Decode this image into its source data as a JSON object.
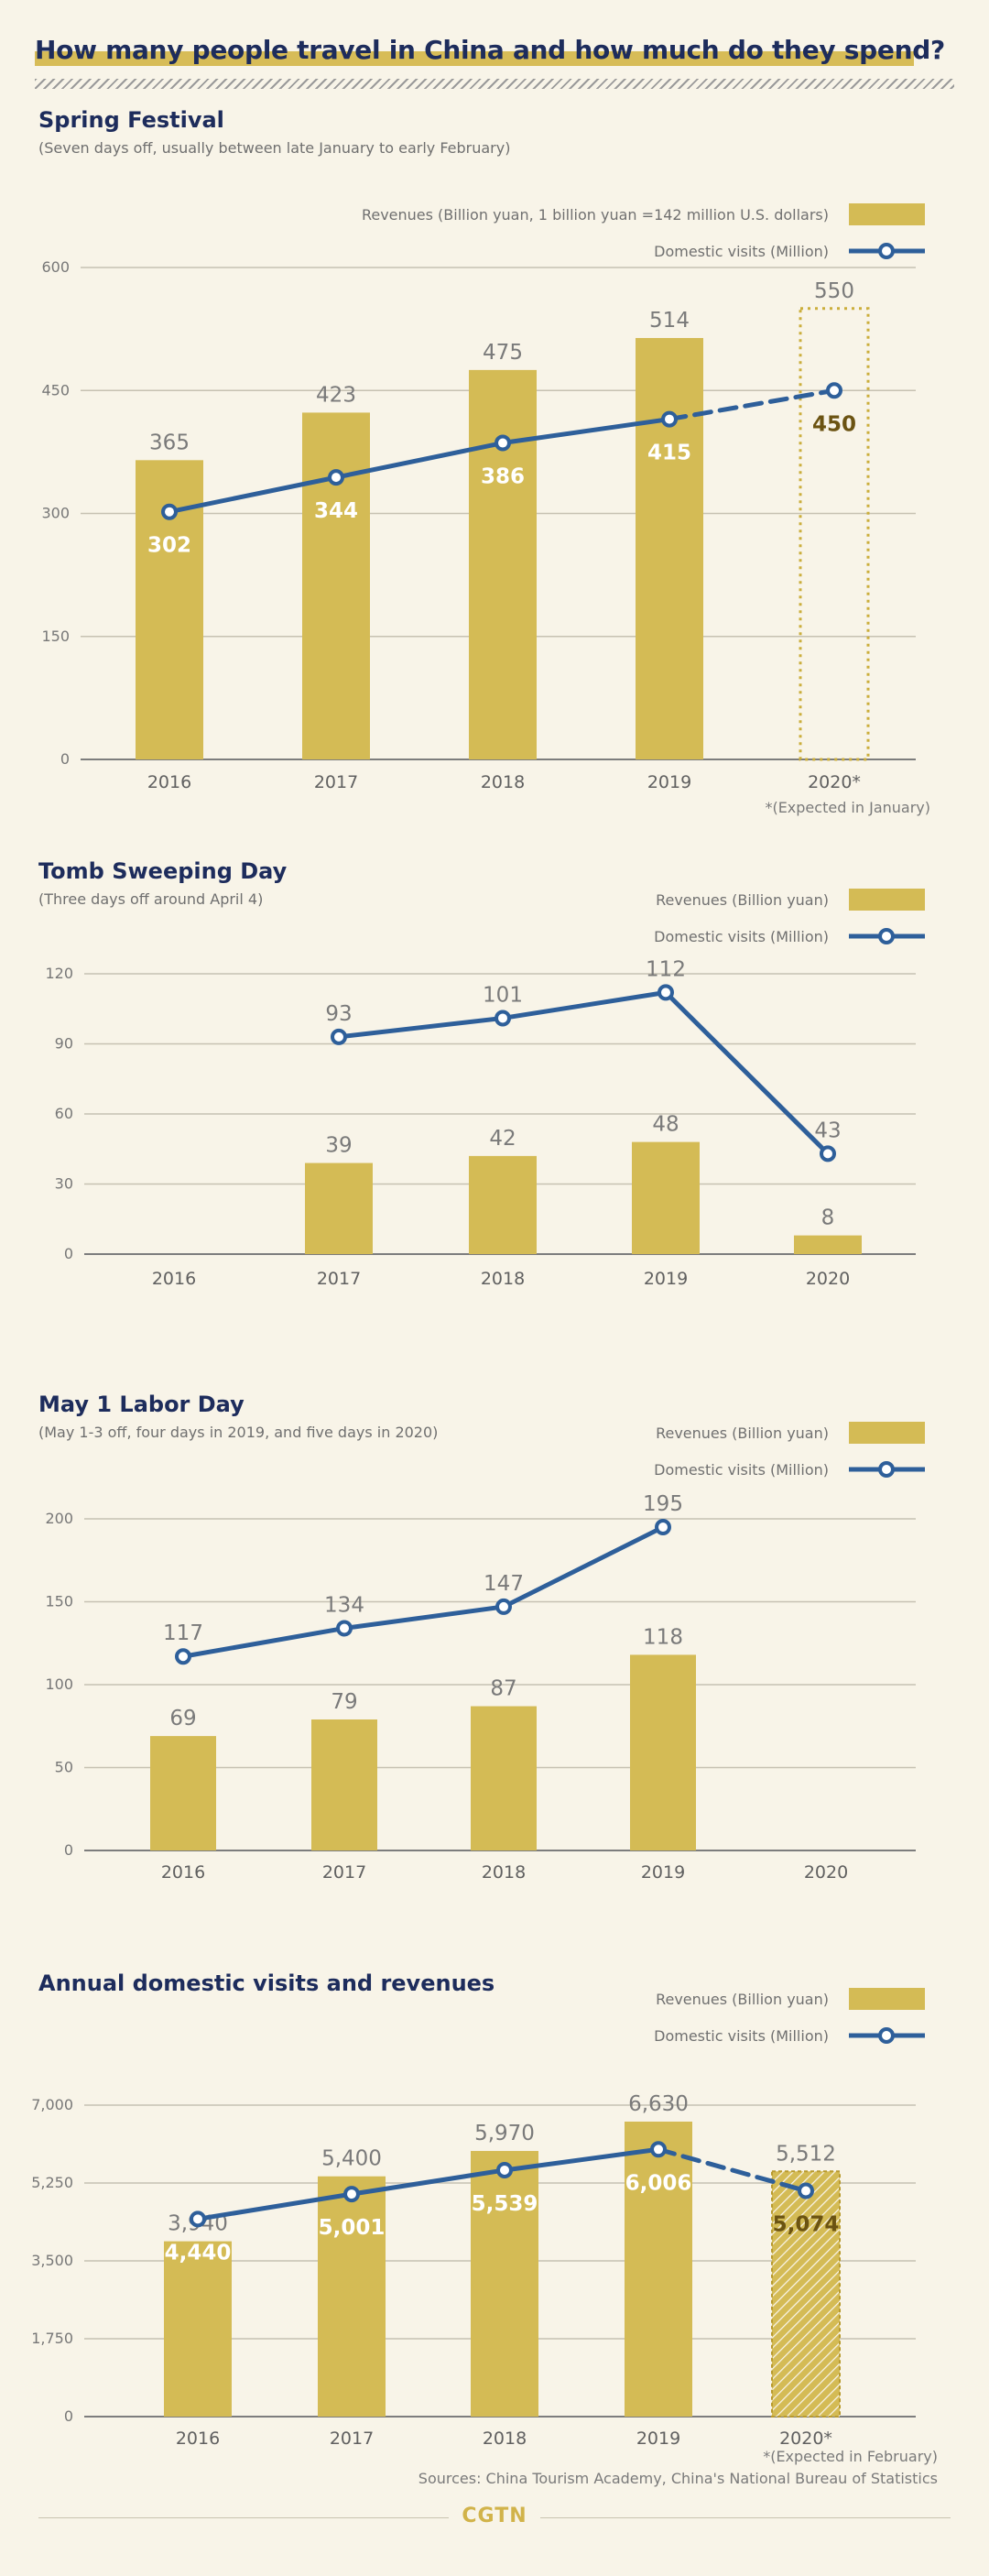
{
  "header": {
    "title": "How many people travel in China and how much do they spend?"
  },
  "colors": {
    "bar": "#d4bb55",
    "line": "#2e5f9a",
    "text": "#1d2c5c",
    "expected_border": "#cbae3c"
  },
  "chart_data": [
    {
      "type": "bar",
      "title": "Spring Festival",
      "subtitle": "(Seven days off, usually between late January to early February)",
      "categories": [
        "2016",
        "2017",
        "2018",
        "2019",
        "2020*"
      ],
      "ylim": [
        0,
        600
      ],
      "yticks": [
        "0",
        "150",
        "300",
        "450",
        "600"
      ],
      "grid": true,
      "legend_position": "top-right",
      "series": [
        {
          "name": "Revenues (Billion yuan, 1 billion yuan =142 million U.S. dollars)",
          "kind": "bar",
          "values": [
            365,
            423,
            475,
            514,
            550
          ],
          "labels": [
            "365",
            "423",
            "475",
            "514",
            "550"
          ]
        },
        {
          "name": "Domestic visits (Million)",
          "kind": "line",
          "values": [
            302,
            344,
            386,
            415,
            450
          ],
          "labels": [
            "302",
            "344",
            "386",
            "415",
            "450"
          ]
        }
      ],
      "expected_index": 4,
      "note": "*(Expected in January)"
    },
    {
      "type": "bar",
      "title": "Tomb Sweeping Day",
      "subtitle": "(Three days off around April 4)",
      "categories": [
        "2016",
        "2017",
        "2018",
        "2019",
        "2020"
      ],
      "ylim": [
        0,
        120
      ],
      "yticks": [
        "0",
        "30",
        "60",
        "90",
        "120"
      ],
      "grid": true,
      "legend_position": "top-right",
      "series": [
        {
          "name": "Revenues (Billion yuan)",
          "kind": "bar",
          "values": [
            null,
            39,
            42,
            48,
            8
          ],
          "labels": [
            "",
            "39",
            "42",
            "48",
            "8"
          ]
        },
        {
          "name": "Domestic visits (Million)",
          "kind": "line",
          "values": [
            null,
            93,
            101,
            112,
            43
          ],
          "labels": [
            "",
            "93",
            "101",
            "112",
            "43"
          ]
        }
      ]
    },
    {
      "type": "bar",
      "title": "May 1 Labor Day",
      "subtitle": "(May 1-3 off, four days in 2019, and five days in 2020)",
      "categories": [
        "2016",
        "2017",
        "2018",
        "2019",
        "2020"
      ],
      "ylim": [
        0,
        200
      ],
      "yticks": [
        "0",
        "50",
        "100",
        "150",
        "200"
      ],
      "grid": true,
      "legend_position": "top-right",
      "series": [
        {
          "name": "Revenues (Billion yuan)",
          "kind": "bar",
          "values": [
            69,
            79,
            87,
            118,
            null
          ],
          "labels": [
            "69",
            "79",
            "87",
            "118",
            ""
          ]
        },
        {
          "name": "Domestic visits (Million)",
          "kind": "line",
          "values": [
            117,
            134,
            147,
            195,
            null
          ],
          "labels": [
            "117",
            "134",
            "147",
            "195",
            ""
          ]
        }
      ]
    },
    {
      "type": "bar",
      "title": "Annual domestic visits and revenues",
      "subtitle": "",
      "categories": [
        "2016",
        "2017",
        "2018",
        "2019",
        "2020*"
      ],
      "ylim": [
        0,
        7000
      ],
      "yticks": [
        "0",
        "1,750",
        "3,500",
        "5,250",
        "7,000"
      ],
      "grid": true,
      "legend_position": "top-right",
      "series": [
        {
          "name": "Revenues (Billion yuan)",
          "kind": "bar",
          "values": [
            3940,
            5400,
            5970,
            6630,
            5512
          ],
          "labels": [
            "3,940",
            "5,400",
            "5,970",
            "6,630",
            "5,512"
          ]
        },
        {
          "name": "Domestic visits (Million)",
          "kind": "line",
          "values": [
            4440,
            5001,
            5539,
            6006,
            5074
          ],
          "labels": [
            "4,440",
            "5,001",
            "5,539",
            "6,006",
            "5,074"
          ]
        }
      ],
      "expected_index": 4,
      "note": "*(Expected in February)"
    }
  ],
  "footer": {
    "sources": "Sources: China Tourism Academy, China's National Bureau of Statistics",
    "logo": "CGTN"
  }
}
